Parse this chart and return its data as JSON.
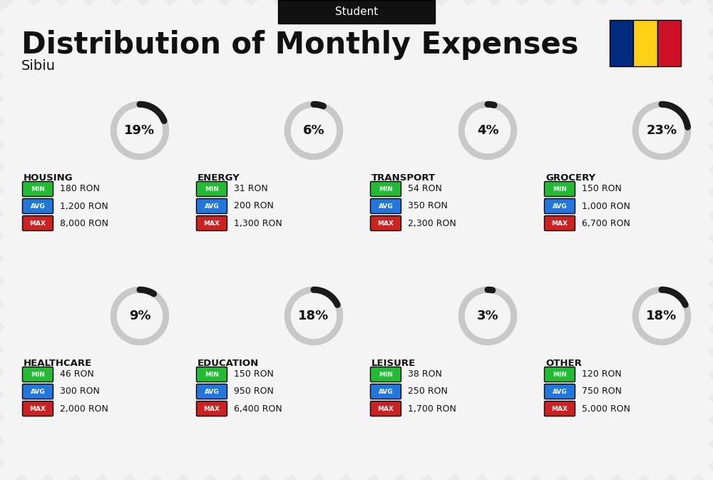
{
  "title": "Distribution of Monthly Expenses",
  "subtitle": "Sibiu",
  "tag": "Student",
  "bg_color": "#ebebeb",
  "categories": [
    {
      "name": "HOUSING",
      "pct": 19,
      "min": "180 RON",
      "avg": "1,200 RON",
      "max": "8,000 RON"
    },
    {
      "name": "ENERGY",
      "pct": 6,
      "min": "31 RON",
      "avg": "200 RON",
      "max": "1,300 RON"
    },
    {
      "name": "TRANSPORT",
      "pct": 4,
      "min": "54 RON",
      "avg": "350 RON",
      "max": "2,300 RON"
    },
    {
      "name": "GROCERY",
      "pct": 23,
      "min": "150 RON",
      "avg": "1,000 RON",
      "max": "6,700 RON"
    },
    {
      "name": "HEALTHCARE",
      "pct": 9,
      "min": "46 RON",
      "avg": "300 RON",
      "max": "2,000 RON"
    },
    {
      "name": "EDUCATION",
      "pct": 18,
      "min": "150 RON",
      "avg": "950 RON",
      "max": "6,400 RON"
    },
    {
      "name": "LEISURE",
      "pct": 3,
      "min": "38 RON",
      "avg": "250 RON",
      "max": "1,700 RON"
    },
    {
      "name": "OTHER",
      "pct": 18,
      "min": "120 RON",
      "avg": "750 RON",
      "max": "5,000 RON"
    }
  ],
  "color_min": "#22bb33",
  "color_avg": "#2277dd",
  "color_max": "#cc2222",
  "ring_color_active": "#1a1a1a",
  "ring_color_bg": "#c8c8c8",
  "romania_colors": [
    "#002B7F",
    "#FCD116",
    "#CE1126"
  ],
  "stripe_color": "#ffffff",
  "stripe_alpha": 0.45
}
